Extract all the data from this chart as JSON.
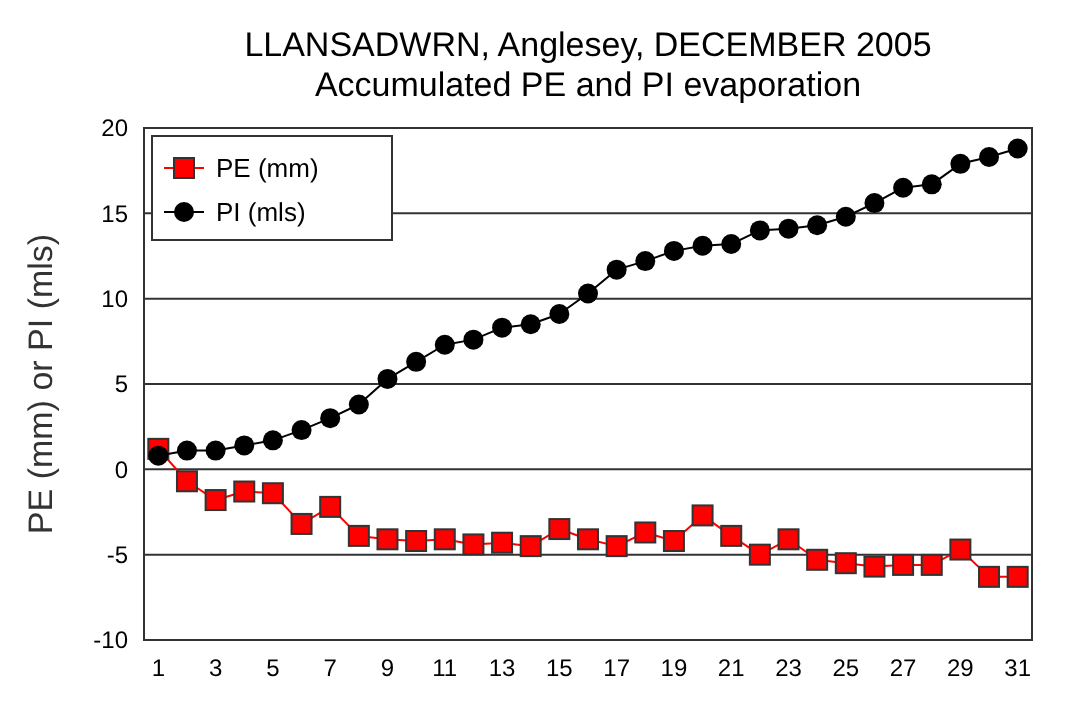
{
  "chart_data": {
    "type": "line",
    "title": "LLANSADWRN, Anglesey, DECEMBER 2005",
    "subtitle": "Accumulated PE and PI evaporation",
    "ylabel": "PE (mm) or PI (mls)",
    "x": [
      1,
      2,
      3,
      4,
      5,
      6,
      7,
      8,
      9,
      10,
      11,
      12,
      13,
      14,
      15,
      16,
      17,
      18,
      19,
      20,
      21,
      22,
      23,
      24,
      25,
      26,
      27,
      28,
      29,
      30,
      31
    ],
    "xlim": [
      0.5,
      31.5
    ],
    "xticks": [
      1,
      3,
      5,
      7,
      9,
      11,
      13,
      15,
      17,
      19,
      21,
      23,
      25,
      27,
      29,
      31
    ],
    "ylim": [
      -10,
      20
    ],
    "yticks": [
      -10,
      -5,
      0,
      5,
      10,
      15,
      20
    ],
    "grid": "y",
    "legend": "top left",
    "series": [
      {
        "name": "PE (mm)",
        "color": "#ff0000",
        "marker": "square",
        "values": [
          1.2,
          -0.7,
          -1.8,
          -1.3,
          -1.4,
          -3.2,
          -2.2,
          -3.9,
          -4.1,
          -4.2,
          -4.1,
          -4.4,
          -4.3,
          -4.5,
          -3.5,
          -4.1,
          -4.5,
          -3.7,
          -4.2,
          -2.7,
          -3.9,
          -5.0,
          -4.1,
          -5.3,
          -5.5,
          -5.7,
          -5.6,
          -5.6,
          -4.7,
          -6.3,
          -6.3
        ]
      },
      {
        "name": "PI (mls)",
        "color": "#000000",
        "marker": "circle",
        "values": [
          0.8,
          1.1,
          1.1,
          1.4,
          1.7,
          2.3,
          3.0,
          3.8,
          5.3,
          6.3,
          7.3,
          7.6,
          8.3,
          8.5,
          9.1,
          10.3,
          11.7,
          12.2,
          12.8,
          13.1,
          13.2,
          14.0,
          14.1,
          14.3,
          14.8,
          15.6,
          16.5,
          16.7,
          17.9,
          18.3,
          18.8
        ]
      }
    ]
  }
}
